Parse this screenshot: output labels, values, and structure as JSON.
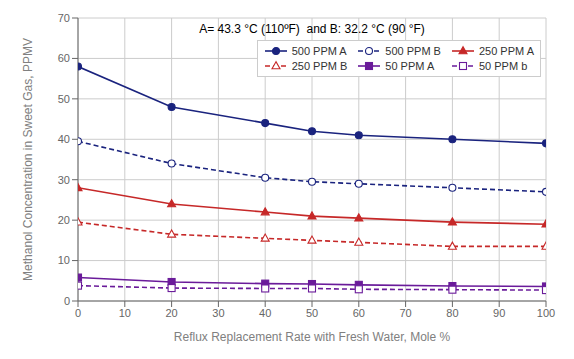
{
  "chart_data": {
    "type": "line",
    "title": "A= 43.3 °C (110ºF)  and B: 32.2 °C (90 °F)",
    "x_label": "Reflux Replacement Rate with Fresh Water,  Mole %",
    "y_label": "Methanol Concentration in Sweet Gas, PPMV",
    "x": [
      0,
      20,
      40,
      50,
      60,
      80,
      100
    ],
    "series": [
      {
        "name": "500 PPM A",
        "color": "#1a237e",
        "line_style": "solid",
        "marker": "circle",
        "values": [
          58,
          48,
          44,
          42,
          41,
          40,
          39
        ]
      },
      {
        "name": "500 PPM B",
        "color": "#1a237e",
        "line_style": "dashed",
        "marker": "circle-open",
        "values": [
          39.5,
          34,
          30.5,
          29.5,
          29,
          28,
          27
        ]
      },
      {
        "name": "250 PPM A",
        "color": "#c62828",
        "line_style": "solid",
        "marker": "triangle",
        "values": [
          28,
          24,
          22,
          21,
          20.5,
          19.5,
          19
        ]
      },
      {
        "name": "250 PPM B",
        "color": "#c62828",
        "line_style": "dashed",
        "marker": "triangle-open",
        "values": [
          19.5,
          16.5,
          15.5,
          15,
          14.5,
          13.5,
          13.5
        ]
      },
      {
        "name": "50 PPM A",
        "color": "#6a1b9a",
        "line_style": "solid",
        "marker": "square",
        "values": [
          5.8,
          4.7,
          4.3,
          4.2,
          4.0,
          3.7,
          3.6
        ]
      },
      {
        "name": "50 PPM b",
        "color": "#6a1b9a",
        "line_style": "dashed",
        "marker": "square-open",
        "values": [
          3.8,
          3.2,
          3.1,
          3.1,
          2.9,
          2.8,
          2.7
        ]
      }
    ],
    "xlim": [
      0,
      100
    ],
    "ylim": [
      0,
      70
    ],
    "xticks": [
      0,
      10,
      20,
      30,
      40,
      50,
      60,
      70,
      80,
      90,
      100
    ],
    "yticks": [
      0,
      10,
      20,
      30,
      40,
      50,
      60,
      70
    ],
    "grid": true,
    "legend": "upper right"
  }
}
